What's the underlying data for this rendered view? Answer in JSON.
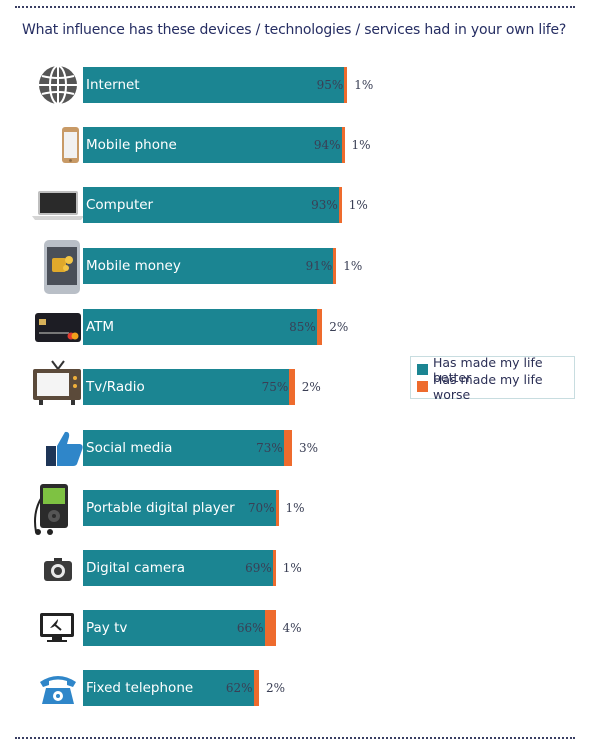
{
  "title": "What influence has these devices / technologies / services had in your own life?",
  "colors": {
    "better": "#1b8592",
    "worse": "#ee6b2d"
  },
  "legend": {
    "better": "Has made my life better",
    "worse": "Has made my life worse"
  },
  "chart_data": {
    "type": "bar",
    "orientation": "horizontal",
    "stacked": true,
    "categories": [
      "Internet",
      "Mobile phone",
      "Computer",
      "Mobile money",
      "ATM",
      "Tv/Radio",
      "Social media",
      "Portable digital player",
      "Digital camera",
      "Pay tv",
      "Fixed telephone"
    ],
    "icons": [
      "globe-icon",
      "mobile-phone-icon",
      "laptop-icon",
      "smartphone-money-icon",
      "bank-card-icon",
      "tv-icon",
      "thumbs-up-icon",
      "music-player-icon",
      "camera-icon",
      "satellite-tv-icon",
      "telephone-icon"
    ],
    "series": [
      {
        "name": "Has made my life better",
        "values": [
          95,
          94,
          93,
          91,
          85,
          75,
          73,
          70,
          69,
          66,
          62
        ]
      },
      {
        "name": "Has made my life worse",
        "values": [
          1,
          1,
          1,
          1,
          2,
          2,
          3,
          1,
          1,
          4,
          2
        ]
      }
    ],
    "value_labels": {
      "better": [
        "95%",
        "94%",
        "93%",
        "91%",
        "85%",
        "75%",
        "73%",
        "70%",
        "69%",
        "66%",
        "62%"
      ],
      "worse": [
        "1%",
        "1%",
        "1%",
        "1%",
        "2%",
        "2%",
        "3%",
        "1%",
        "1%",
        "4%",
        "2%"
      ]
    },
    "xlim": [
      0,
      100
    ],
    "legend_position": "right"
  }
}
